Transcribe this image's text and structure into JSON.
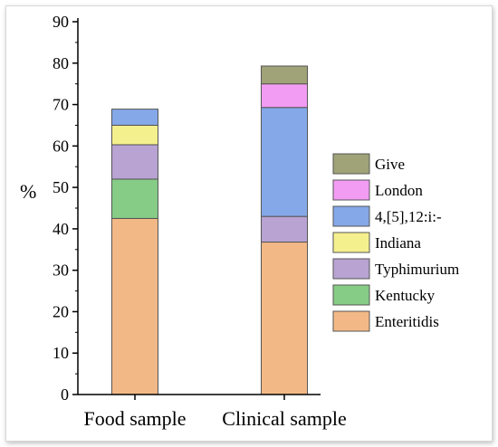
{
  "chart_data": {
    "type": "bar",
    "stacked": true,
    "categories": [
      "Food sample",
      "Clinical sample"
    ],
    "ylabel": "%",
    "xlabel": "",
    "title": "",
    "ylim": [
      0,
      90
    ],
    "yticks": [
      0,
      10,
      20,
      30,
      40,
      50,
      60,
      70,
      80,
      90
    ],
    "grid": false,
    "legend_position": "right",
    "series": [
      {
        "name": "Enteritidis",
        "color": "#f2b987",
        "values": [
          42.5,
          36.8
        ]
      },
      {
        "name": "Kentucky",
        "color": "#86cc86",
        "values": [
          9.5,
          0
        ]
      },
      {
        "name": "Typhimurium",
        "color": "#b8a3d2",
        "values": [
          8.3,
          6.2
        ]
      },
      {
        "name": "Indiana",
        "color": "#f4f08e",
        "values": [
          4.7,
          0
        ]
      },
      {
        "name": "4,[5],12:i:-",
        "color": "#85a8e8",
        "values": [
          3.9,
          26.3
        ]
      },
      {
        "name": "London",
        "color": "#f39cf3",
        "values": [
          0,
          5.7
        ]
      },
      {
        "name": "Give",
        "color": "#a0a278",
        "values": [
          0,
          4.3
        ]
      }
    ]
  }
}
